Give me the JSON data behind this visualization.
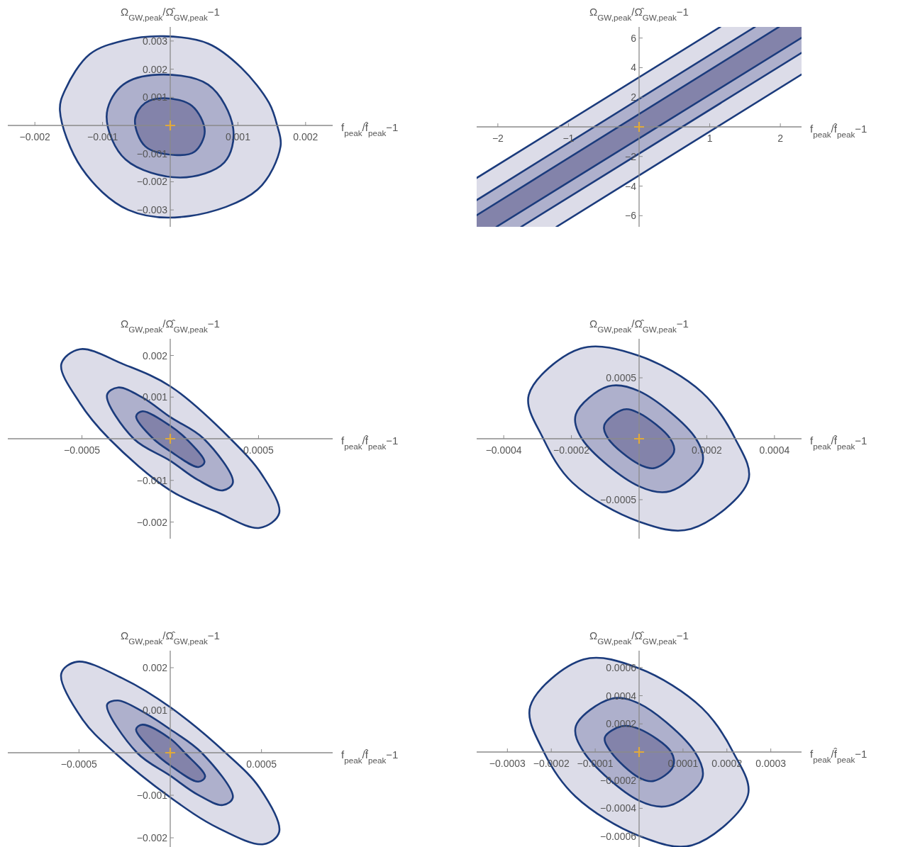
{
  "chart_data": [
    {
      "type": "area",
      "xlabel": "f$_{peak}$/f̂$_{peak}$−1",
      "ylabel": "Ω$_{GW,peak}$/Ω̂$_{GW,peak}$−1",
      "xlim": [
        -0.0024,
        0.0024
      ],
      "ylim": [
        -0.0036,
        0.0035
      ],
      "xticks": [
        -0.002,
        -0.001,
        0.001,
        0.002
      ],
      "yticks": [
        -0.003,
        -0.002,
        -0.001,
        0.001,
        0.002,
        0.003
      ],
      "line_style": "solid",
      "series": [
        {
          "color": "#dcdce8",
          "x": [
            -9e-05,
            0.00056,
            0.00105,
            0.00146,
            0.00158,
            0.00163,
            0.00129,
            0.00028,
            -0.00062,
            -0.00131,
            -0.00163,
            -0.00155,
            -0.00119,
            -0.0007
          ],
          "values": [
            0.00317,
            0.00291,
            0.00205,
            0.0008,
            0,
            -0.00074,
            -0.00228,
            -0.00322,
            -0.003,
            -0.00151,
            0.00053,
            0.00128,
            0.00253,
            0.00301
          ]
        },
        {
          "color": "#aeb0cc",
          "x": [
            -0.00027,
            0.00056,
            0.00093,
            0.0008,
            0.00015,
            -0.00066,
            -0.00094,
            -0.00074
          ],
          "values": [
            0.00179,
            0.00145,
            -0.0001,
            -0.00131,
            -0.00185,
            -0.00121,
            0.00031,
            0.00136
          ]
        },
        {
          "color": "#8383aa",
          "x": [
            -9e-05,
            0.00032,
            0.00051,
            0.00036,
            7e-05,
            -0.00037,
            -0.00052,
            -0.00037
          ],
          "values": [
            0.00097,
            0.0007,
            -0.00021,
            -0.00093,
            -0.00105,
            -0.00074,
            0.00022,
            0.0008
          ]
        },
        {
          "type": "scatter",
          "marker": "cross",
          "color": "#e0a93a",
          "x": [
            0
          ],
          "values": [
            0
          ]
        }
      ]
    },
    {
      "type": "area",
      "xlabel": "f$_{peak}$/f̂$_{peak}$−1",
      "ylabel": "Ω$_{GW,peak}$/Ω̂$_{GW,peak}$−1",
      "xlim": [
        -2.3,
        2.3
      ],
      "ylim": [
        -6.75,
        6.75
      ],
      "xticks": [
        -2,
        -1,
        1,
        2
      ],
      "yticks": [
        -6,
        -4,
        -2,
        2,
        4,
        6
      ],
      "line_style": "solid",
      "series": [
        {
          "color": "#dcdce8",
          "line_style": "none",
          "x": [
            -2.3,
            1.15,
            1.64
          ],
          "values": [
            null,
            null,
            null
          ],
          "lower": [
            -4.95,
            5.3,
            6.75
          ],
          "upper": [
            -3.45,
            6.75,
            6.75
          ]
        },
        {
          "color": "#aeb0cc",
          "line_style": "none",
          "x": [
            -2.3,
            1.64,
            1.98
          ],
          "values": [
            null,
            null,
            null
          ],
          "lower": [
            -5.97,
            5.74,
            6.75
          ],
          "upper": [
            -4.95,
            6.75,
            6.75
          ]
        },
        {
          "color": "#8383aa",
          "line_style": "none",
          "x": [
            -2.3,
            -2.02,
            1.98,
            2.3
          ],
          "values": [
            null,
            null,
            null,
            null
          ],
          "lower": [
            -6.75,
            -6.75,
            5.07,
            6.02
          ],
          "upper": [
            -5.97,
            -5.14,
            6.75,
            6.75
          ]
        },
        {
          "color": "#aeb0cc",
          "line_style": "none",
          "x": [
            -2.02,
            -1.67,
            2.3
          ],
          "values": [
            null,
            null,
            null
          ],
          "lower": [
            -6.75,
            -6.75,
            5.0
          ],
          "upper": [
            -6.75,
            -5.72,
            6.02
          ]
        },
        {
          "color": "#dcdce8",
          "line_style": "none",
          "x": [
            -1.67,
            -1.17,
            2.3
          ],
          "values": [
            null,
            null,
            null
          ],
          "lower": [
            -6.75,
            -6.75,
            3.54
          ],
          "upper": [
            -6.75,
            -5.27,
            5.0
          ]
        },
        {
          "type": "line",
          "color": "#1b3b7c",
          "x": [
            -2.3,
            1.15
          ],
          "values": [
            -3.45,
            6.75
          ]
        },
        {
          "type": "line",
          "color": "#1b3b7c",
          "x": [
            -2.3,
            1.64
          ],
          "values": [
            -4.95,
            6.75
          ]
        },
        {
          "type": "line",
          "color": "#1b3b7c",
          "x": [
            -2.3,
            1.98
          ],
          "values": [
            -5.97,
            6.75
          ]
        },
        {
          "type": "line",
          "color": "#1b3b7c",
          "x": [
            -2.02,
            2.3
          ],
          "values": [
            -6.75,
            6.02
          ]
        },
        {
          "type": "line",
          "color": "#1b3b7c",
          "x": [
            -1.67,
            2.3
          ],
          "values": [
            -6.75,
            5.0
          ]
        },
        {
          "type": "line",
          "color": "#1b3b7c",
          "x": [
            -1.17,
            2.3
          ],
          "values": [
            -6.75,
            3.54
          ]
        },
        {
          "type": "scatter",
          "marker": "cross",
          "color": "#e0a93a",
          "x": [
            0
          ],
          "values": [
            0
          ]
        }
      ]
    },
    {
      "type": "area",
      "xlabel": "f$_{peak}$/f̂$_{peak}$−1",
      "ylabel": "Ω$_{GW,peak}$/Ω̂$_{GW,peak}$−1",
      "xlim": [
        -0.00092,
        0.00092
      ],
      "ylim": [
        -0.0024,
        0.0024
      ],
      "xticks": [
        -0.0005,
        0.0005
      ],
      "yticks": [
        -0.002,
        -0.001,
        0.001,
        0.002
      ],
      "line_style": "solid",
      "series": [
        {
          "color": "#dcdce8",
          "x": [
            -0.000617,
            -0.000512,
            -0.000265,
            0,
            0.000341,
            0.000522,
            0.000617,
            0.000506,
            0.000259,
            0,
            -0.000346,
            -0.000512
          ],
          "values": [
            0.00179,
            0.00215,
            0.00179,
            0.00126,
            0,
            -0.00088,
            -0.00179,
            -0.00214,
            -0.00175,
            -0.00124,
            0,
            0.00086
          ]
        },
        {
          "color": "#aeb0cc",
          "x": [
            -0.000358,
            -0.000296,
            -0.000157,
            0,
            0.00019,
            0.000355,
            0.000298,
            0.000157,
            0,
            -0.000207
          ],
          "values": [
            0.00105,
            0.00123,
            0.00099,
            0.00052,
            0,
            -0.00105,
            -0.00124,
            -0.00099,
            -0.00053,
            0
          ]
        },
        {
          "color": "#8383aa",
          "x": [
            -0.000193,
            -0.000157,
            0,
            9e-05,
            0.000194,
            0.000159,
            0,
            -9.6e-05
          ],
          "values": [
            0.00054,
            0.00066,
            0.00031,
            0,
            -0.00056,
            -0.00068,
            -0.0003,
            0
          ]
        },
        {
          "type": "scatter",
          "marker": "cross",
          "color": "#e0a93a",
          "x": [
            0
          ],
          "values": [
            0
          ]
        }
      ]
    },
    {
      "type": "area",
      "xlabel": "f$_{peak}$/f̂$_{peak}$−1",
      "ylabel": "Ω$_{GW,peak}$/Ω̂$_{GW,peak}$−1",
      "xlim": [
        -0.00048,
        0.00048
      ],
      "ylim": [
        -0.00082,
        0.00082
      ],
      "xticks": [
        -0.0004,
        -0.0002,
        0.0002,
        0.0004
      ],
      "yticks": [
        -0.0005,
        0.0005
      ],
      "line_style": "solid",
      "series": [
        {
          "color": "#dcdce8",
          "x": [
            -0.000326,
            -0.000173,
            0,
            0.000186,
            0.000284,
            0.000323,
            0.000153,
            0,
            -0.000197,
            -0.000283
          ],
          "values": [
            0.00036,
            0.00074,
            0.00068,
            0.00038,
            0,
            -0.00034,
            -0.00074,
            -0.00068,
            -0.00036,
            0
          ]
        },
        {
          "color": "#aeb0cc",
          "x": [
            -0.000187,
            -9.1e-05,
            0,
            0.000168,
            0.000187,
            9.2e-05,
            0,
            -0.000169
          ],
          "values": [
            0.0002,
            0.00043,
            0.00039,
            0,
            -0.0002,
            -0.00043,
            -0.00039,
            0
          ]
        },
        {
          "color": "#8383aa",
          "x": [
            -0.000103,
            -4.6e-05,
            0,
            9.2e-05,
            0.000103,
            4.7e-05,
            0,
            -9.1e-05
          ],
          "values": [
            0.00011,
            0.00024,
            0.00021,
            0,
            -0.00011,
            -0.00024,
            -0.00021,
            0
          ]
        },
        {
          "type": "scatter",
          "marker": "cross",
          "color": "#e0a93a",
          "x": [
            0
          ],
          "values": [
            0
          ]
        }
      ]
    },
    {
      "type": "area",
      "xlabel": "f$_{peak}$/f̂$_{peak}$−1",
      "ylabel": "Ω$_{GW,peak}$/Ω̂$_{GW,peak}$−1",
      "xlim": [
        -0.00089,
        0.00089
      ],
      "ylim": [
        -0.0023,
        0.0024
      ],
      "xticks": [
        -0.0005,
        0.0005
      ],
      "yticks": [
        -0.002,
        -0.001,
        0.001,
        0.002
      ],
      "line_style": "solid",
      "series": [
        {
          "color": "#dcdce8",
          "x": [
            -0.000597,
            -0.00051,
            -0.000257,
            0,
            0.000303,
            0.00049,
            0.000597,
            0.000512,
            0.000258,
            0,
            -0.000304,
            -0.00048
          ],
          "values": [
            0.00186,
            0.00214,
            0.00174,
            0.00107,
            0,
            -0.00083,
            -0.00186,
            -0.00215,
            -0.00176,
            -0.00105,
            0,
            0.00078
          ]
        },
        {
          "color": "#aeb0cc",
          "x": [
            -0.000346,
            -0.000287,
            -0.000152,
            0,
            0.000172,
            0.000343,
            0.000288,
            0.000152,
            0,
            -0.000182
          ],
          "values": [
            0.00113,
            0.00123,
            0.00097,
            0.00055,
            0,
            -0.00105,
            -0.00123,
            -0.00099,
            -0.00054,
            0
          ]
        },
        {
          "color": "#8383aa",
          "x": [
            -0.000187,
            -0.000152,
            0,
            7.9e-05,
            0.000191,
            0.000154,
            0,
            -8.5e-05
          ],
          "values": [
            0.00055,
            0.00066,
            0.00033,
            0,
            -0.00056,
            -0.00068,
            -0.0003,
            0
          ]
        },
        {
          "type": "scatter",
          "marker": "cross",
          "color": "#e0a93a",
          "x": [
            0
          ],
          "values": [
            0
          ]
        }
      ]
    },
    {
      "type": "area",
      "xlabel": "f$_{peak}$/f̂$_{peak}$−1",
      "ylabel": "Ω$_{GW,peak}$/Ω̂$_{GW,peak}$−1",
      "xlim": [
        -0.00037,
        0.00037
      ],
      "ylim": [
        -0.0007,
        0.00072
      ],
      "xticks": [
        -0.0003,
        -0.0002,
        -0.0001,
        0.0001,
        0.0002,
        0.0003
      ],
      "yticks": [
        -0.0006,
        -0.0004,
        -0.0002,
        0.0002,
        0.0004,
        0.0006
      ],
      "line_style": "solid",
      "series": [
        {
          "color": "#dcdce8",
          "x": [
            -0.000248,
            -0.000126,
            0,
            0.000143,
            0.000214,
            0.000248,
            0.000121,
            0,
            -0.000145,
            -0.000217
          ],
          "values": [
            0.000324,
            0.000658,
            0.000594,
            0.000314,
            0,
            -0.000306,
            -0.000662,
            -0.000596,
            -0.000316,
            0
          ]
        },
        {
          "color": "#aeb0cc",
          "x": [
            -0.000144,
            -6.4e-05,
            0,
            0.000127,
            0.000144,
            6.8e-05,
            0,
            -0.000126
          ],
          "values": [
            0.000184,
            0.000378,
            0.000344,
            0,
            -0.000186,
            -0.000382,
            -0.000346,
            0
          ]
        },
        {
          "color": "#8383aa",
          "x": [
            -7.8e-05,
            -3.9e-05,
            0,
            7.3e-05,
            7.7e-05,
            3.3e-05,
            0,
            -6.4e-05
          ],
          "values": [
            0.000104,
            0.000184,
            0.000164,
            0,
            -0.000106,
            -0.000206,
            -0.000182,
            0
          ]
        },
        {
          "type": "scatter",
          "marker": "cross",
          "color": "#e0a93a",
          "x": [
            0
          ],
          "values": [
            0
          ]
        }
      ]
    }
  ]
}
